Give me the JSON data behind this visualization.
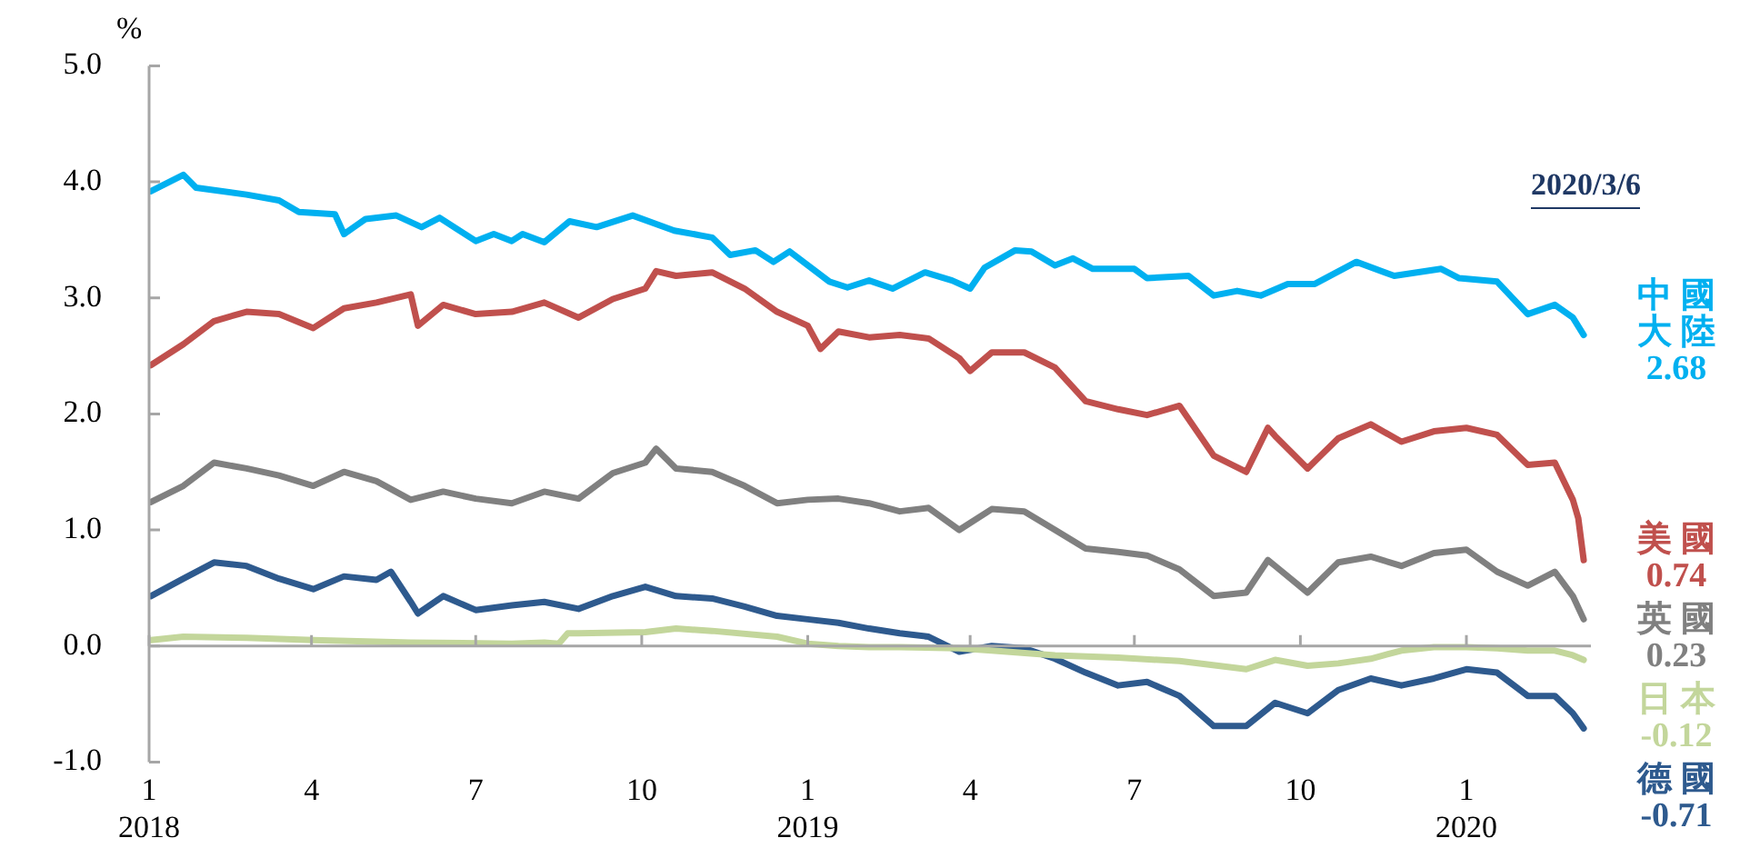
{
  "chart_data": {
    "type": "line",
    "ylabel": "%",
    "annotations": [
      "2020/3/6"
    ],
    "xlim": [
      "2018-01-01",
      "2020-03-10"
    ],
    "xticks": [
      {
        "value": "2018-01-01",
        "label": "1\n2018"
      },
      {
        "value": "2018-04-01",
        "label": "4"
      },
      {
        "value": "2018-07-01",
        "label": "7"
      },
      {
        "value": "2018-10-01",
        "label": "10"
      },
      {
        "value": "2019-01-01",
        "label": "1\n2019"
      },
      {
        "value": "2019-04-01",
        "label": "4"
      },
      {
        "value": "2019-07-01",
        "label": "7"
      },
      {
        "value": "2019-10-01",
        "label": "10"
      },
      {
        "value": "2020-01-01",
        "label": "1\n2020"
      }
    ],
    "ylim": [
      -1,
      5
    ],
    "yticks": [
      {
        "value": -1,
        "label": "-1.0"
      },
      {
        "value": 0,
        "label": "0.0"
      },
      {
        "value": 1,
        "label": "1.0"
      },
      {
        "value": 2,
        "label": "2.0"
      },
      {
        "value": 3,
        "label": "3.0"
      },
      {
        "value": 4,
        "label": "4.0"
      },
      {
        "value": 5,
        "label": "5.0"
      }
    ],
    "legend": false,
    "marker": "none",
    "line_style": "solid",
    "series": [
      {
        "name": "中國大陸",
        "color": "#00b0f0",
        "x": [
          "2018-01-02",
          "2018-01-20",
          "2018-01-27",
          "2018-02-24",
          "2018-03-14",
          "2018-03-25",
          "2018-04-14",
          "2018-04-19",
          "2018-05-01",
          "2018-05-18",
          "2018-06-01",
          "2018-06-11",
          "2018-07-01",
          "2018-07-11",
          "2018-07-21",
          "2018-07-27",
          "2018-08-08",
          "2018-08-22",
          "2018-09-06",
          "2018-09-26",
          "2018-10-19",
          "2018-11-09",
          "2018-11-19",
          "2018-12-03",
          "2018-12-13",
          "2018-12-22",
          "2019-01-13",
          "2019-01-23",
          "2019-02-04",
          "2019-02-17",
          "2019-03-07",
          "2019-03-22",
          "2019-04-01",
          "2019-04-09",
          "2019-04-26",
          "2019-05-05",
          "2019-05-18",
          "2019-05-28",
          "2019-06-08",
          "2019-07-01",
          "2019-07-08",
          "2019-07-31",
          "2019-08-14",
          "2019-08-27",
          "2019-09-09",
          "2019-09-24",
          "2019-10-09",
          "2019-11-01",
          "2019-11-22",
          "2019-12-18",
          "2019-12-28",
          "2020-01-18",
          "2020-02-04",
          "2020-02-19",
          "2020-02-29",
          "2020-03-06"
        ],
        "values": [
          3.92,
          4.06,
          3.95,
          3.89,
          3.84,
          3.74,
          3.72,
          3.55,
          3.68,
          3.71,
          3.61,
          3.69,
          3.49,
          3.55,
          3.49,
          3.55,
          3.48,
          3.66,
          3.61,
          3.71,
          3.58,
          3.52,
          3.37,
          3.41,
          3.31,
          3.4,
          3.14,
          3.09,
          3.15,
          3.08,
          3.22,
          3.15,
          3.08,
          3.26,
          3.41,
          3.4,
          3.28,
          3.34,
          3.25,
          3.25,
          3.17,
          3.19,
          3.02,
          3.06,
          3.02,
          3.12,
          3.12,
          3.31,
          3.19,
          3.25,
          3.17,
          3.14,
          2.86,
          2.94,
          2.83,
          2.68
        ],
        "value_labels": [
          null,
          null,
          null,
          null,
          null,
          null,
          null,
          null,
          null,
          null,
          null,
          null,
          null,
          null,
          null,
          null,
          null,
          null,
          null,
          null,
          null,
          null,
          null,
          null,
          null,
          null,
          null,
          null,
          null,
          null,
          null,
          null,
          null,
          null,
          null,
          null,
          null,
          null,
          null,
          null,
          null,
          null,
          null,
          null,
          null,
          null,
          null,
          null,
          null,
          null,
          null,
          null,
          null,
          null,
          null,
          "2.68"
        ]
      },
      {
        "name": "美國",
        "color": "#c0504d",
        "x": [
          "2018-01-02",
          "2018-01-20",
          "2018-02-06",
          "2018-02-24",
          "2018-03-14",
          "2018-04-02",
          "2018-04-19",
          "2018-05-07",
          "2018-05-26",
          "2018-05-30",
          "2018-06-13",
          "2018-07-01",
          "2018-07-21",
          "2018-08-08",
          "2018-08-27",
          "2018-09-15",
          "2018-10-03",
          "2018-10-09",
          "2018-10-20",
          "2018-11-09",
          "2018-11-27",
          "2018-12-15",
          "2019-01-01",
          "2019-01-08",
          "2019-01-18",
          "2019-02-04",
          "2019-02-21",
          "2019-03-09",
          "2019-03-26",
          "2019-04-01",
          "2019-04-13",
          "2019-05-01",
          "2019-05-18",
          "2019-06-04",
          "2019-06-22",
          "2019-07-08",
          "2019-07-26",
          "2019-08-14",
          "2019-09-01",
          "2019-09-13",
          "2019-09-17",
          "2019-10-05",
          "2019-10-22",
          "2019-11-09",
          "2019-11-26",
          "2019-12-14",
          "2020-01-01",
          "2020-01-18",
          "2020-02-04",
          "2020-02-19",
          "2020-02-29",
          "2020-03-03",
          "2020-03-06"
        ],
        "values": [
          2.42,
          2.6,
          2.8,
          2.88,
          2.86,
          2.74,
          2.91,
          2.96,
          3.03,
          2.76,
          2.94,
          2.86,
          2.88,
          2.96,
          2.83,
          2.99,
          3.08,
          3.23,
          3.19,
          3.22,
          3.08,
          2.88,
          2.76,
          2.56,
          2.71,
          2.66,
          2.68,
          2.65,
          2.48,
          2.37,
          2.53,
          2.53,
          2.4,
          2.11,
          2.04,
          1.99,
          2.07,
          1.64,
          1.5,
          1.88,
          1.81,
          1.53,
          1.79,
          1.91,
          1.76,
          1.85,
          1.88,
          1.82,
          1.56,
          1.58,
          1.26,
          1.1,
          0.74
        ],
        "value_labels": [
          null,
          null,
          null,
          null,
          null,
          null,
          null,
          null,
          null,
          null,
          null,
          null,
          null,
          null,
          null,
          null,
          null,
          null,
          null,
          null,
          null,
          null,
          null,
          null,
          null,
          null,
          null,
          null,
          null,
          null,
          null,
          null,
          null,
          null,
          null,
          null,
          null,
          null,
          null,
          null,
          null,
          null,
          null,
          null,
          null,
          null,
          null,
          null,
          null,
          null,
          null,
          null,
          "0.74"
        ]
      },
      {
        "name": "英國",
        "color": "#808080",
        "x": [
          "2018-01-02",
          "2018-01-20",
          "2018-02-06",
          "2018-02-24",
          "2018-03-14",
          "2018-04-02",
          "2018-04-19",
          "2018-05-07",
          "2018-05-26",
          "2018-06-13",
          "2018-07-01",
          "2018-07-21",
          "2018-08-08",
          "2018-08-27",
          "2018-09-15",
          "2018-10-03",
          "2018-10-09",
          "2018-10-20",
          "2018-11-09",
          "2018-11-27",
          "2018-12-15",
          "2019-01-01",
          "2019-01-18",
          "2019-02-04",
          "2019-02-21",
          "2019-03-09",
          "2019-03-26",
          "2019-04-13",
          "2019-05-01",
          "2019-05-18",
          "2019-06-04",
          "2019-06-22",
          "2019-07-08",
          "2019-07-26",
          "2019-08-14",
          "2019-09-01",
          "2019-09-13",
          "2019-09-17",
          "2019-10-05",
          "2019-10-22",
          "2019-11-09",
          "2019-11-26",
          "2019-12-14",
          "2020-01-01",
          "2020-01-18",
          "2020-02-04",
          "2020-02-19",
          "2020-02-29",
          "2020-03-06"
        ],
        "values": [
          1.24,
          1.38,
          1.58,
          1.53,
          1.47,
          1.38,
          1.5,
          1.42,
          1.26,
          1.33,
          1.27,
          1.23,
          1.33,
          1.27,
          1.49,
          1.58,
          1.7,
          1.53,
          1.5,
          1.38,
          1.23,
          1.26,
          1.27,
          1.23,
          1.16,
          1.19,
          1.0,
          1.18,
          1.16,
          1.0,
          0.84,
          0.81,
          0.78,
          0.66,
          0.43,
          0.46,
          0.74,
          0.69,
          0.46,
          0.72,
          0.77,
          0.69,
          0.8,
          0.83,
          0.64,
          0.52,
          0.64,
          0.43,
          0.23
        ],
        "value_labels": [
          null,
          null,
          null,
          null,
          null,
          null,
          null,
          null,
          null,
          null,
          null,
          null,
          null,
          null,
          null,
          null,
          null,
          null,
          null,
          null,
          null,
          null,
          null,
          null,
          null,
          null,
          null,
          null,
          null,
          null,
          null,
          null,
          null,
          null,
          null,
          null,
          null,
          null,
          null,
          null,
          null,
          null,
          null,
          null,
          null,
          null,
          null,
          null,
          "0.23"
        ]
      },
      {
        "name": "日本",
        "color": "#c3d69b",
        "x": [
          "2018-01-02",
          "2018-01-20",
          "2018-02-24",
          "2018-04-02",
          "2018-05-26",
          "2018-07-21",
          "2018-08-08",
          "2018-08-16",
          "2018-08-21",
          "2018-08-27",
          "2018-10-03",
          "2018-10-20",
          "2018-11-09",
          "2018-12-15",
          "2019-01-01",
          "2019-01-18",
          "2019-02-04",
          "2019-02-21",
          "2019-03-26",
          "2019-04-13",
          "2019-05-18",
          "2019-06-22",
          "2019-07-26",
          "2019-09-01",
          "2019-09-17",
          "2019-10-05",
          "2019-10-22",
          "2019-11-09",
          "2019-11-26",
          "2019-12-14",
          "2020-01-01",
          "2020-01-18",
          "2020-02-04",
          "2020-02-19",
          "2020-02-29",
          "2020-03-06"
        ],
        "values": [
          0.05,
          0.08,
          0.07,
          0.05,
          0.03,
          0.02,
          0.03,
          0.02,
          0.11,
          0.11,
          0.12,
          0.15,
          0.13,
          0.08,
          0.02,
          0.0,
          -0.01,
          -0.01,
          -0.02,
          -0.04,
          -0.08,
          -0.1,
          -0.13,
          -0.2,
          -0.12,
          -0.17,
          -0.15,
          -0.11,
          -0.04,
          -0.01,
          -0.01,
          -0.02,
          -0.04,
          -0.04,
          -0.08,
          -0.12
        ],
        "value_labels": [
          null,
          null,
          null,
          null,
          null,
          null,
          null,
          null,
          null,
          null,
          null,
          null,
          null,
          null,
          null,
          null,
          null,
          null,
          null,
          null,
          null,
          null,
          null,
          null,
          null,
          null,
          null,
          null,
          null,
          null,
          null,
          null,
          null,
          null,
          null,
          "-0.12"
        ]
      },
      {
        "name": "德國",
        "color": "#2e5a8e",
        "x": [
          "2018-01-02",
          "2018-01-20",
          "2018-02-06",
          "2018-02-24",
          "2018-03-14",
          "2018-04-02",
          "2018-04-19",
          "2018-05-07",
          "2018-05-15",
          "2018-05-26",
          "2018-05-30",
          "2018-06-13",
          "2018-07-01",
          "2018-07-21",
          "2018-08-08",
          "2018-08-27",
          "2018-09-15",
          "2018-10-03",
          "2018-10-20",
          "2018-11-09",
          "2018-11-27",
          "2018-12-15",
          "2019-01-01",
          "2019-01-18",
          "2019-02-04",
          "2019-02-21",
          "2019-03-09",
          "2019-03-26",
          "2019-04-13",
          "2019-05-01",
          "2019-05-18",
          "2019-06-04",
          "2019-06-22",
          "2019-07-08",
          "2019-07-26",
          "2019-08-14",
          "2019-09-01",
          "2019-09-17",
          "2019-10-05",
          "2019-10-22",
          "2019-11-09",
          "2019-11-26",
          "2019-12-14",
          "2020-01-01",
          "2020-01-18",
          "2020-02-04",
          "2020-02-19",
          "2020-02-29",
          "2020-03-06"
        ],
        "values": [
          0.43,
          0.58,
          0.72,
          0.69,
          0.58,
          0.49,
          0.6,
          0.57,
          0.64,
          0.38,
          0.28,
          0.43,
          0.31,
          0.35,
          0.38,
          0.32,
          0.43,
          0.51,
          0.43,
          0.41,
          0.34,
          0.26,
          0.23,
          0.2,
          0.15,
          0.11,
          0.08,
          -0.05,
          0.0,
          -0.02,
          -0.11,
          -0.23,
          -0.34,
          -0.31,
          -0.43,
          -0.69,
          -0.69,
          -0.49,
          -0.58,
          -0.38,
          -0.28,
          -0.34,
          -0.28,
          -0.2,
          -0.23,
          -0.43,
          -0.43,
          -0.58,
          -0.71
        ],
        "value_labels": [
          null,
          null,
          null,
          null,
          null,
          null,
          null,
          null,
          null,
          null,
          null,
          null,
          null,
          null,
          null,
          null,
          null,
          null,
          null,
          null,
          null,
          null,
          null,
          null,
          null,
          null,
          null,
          null,
          null,
          null,
          null,
          null,
          null,
          null,
          null,
          null,
          null,
          null,
          null,
          null,
          null,
          null,
          null,
          null,
          null,
          null,
          null,
          null,
          "-0.71"
        ]
      }
    ]
  }
}
